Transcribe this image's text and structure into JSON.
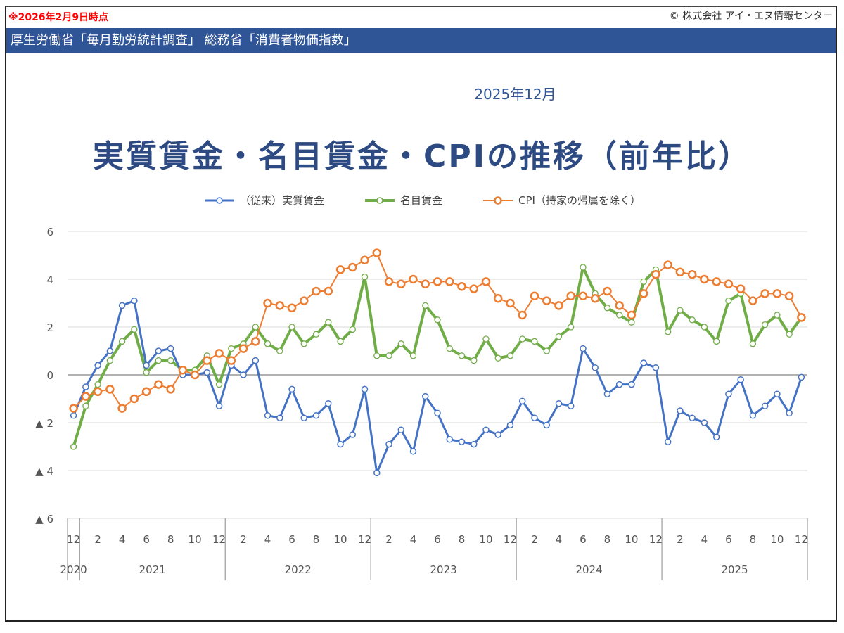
{
  "header": {
    "as_of": "※2026年2月9日時点",
    "copyright": "© 株式会社 アイ・エヌ情報センター",
    "source": "厚生労働省「毎月勤労統計調査」 総務省「消費者物価指数」"
  },
  "chart_data": {
    "type": "line",
    "period": "2025年12月",
    "title": "実質賃金・名目賃金・CPIの推移（前年比）",
    "ylim": [
      -6,
      6
    ],
    "yticks": [
      6,
      4,
      2,
      0,
      -2,
      -4,
      -6
    ],
    "ytick_labels": [
      "6",
      "4",
      "2",
      "0",
      "▲ 2",
      "▲ 4",
      "▲ 6"
    ],
    "grid": true,
    "legend_position": "top",
    "x_start": "2020-12",
    "x_end": "2025-12",
    "x_tick_labels": [
      "12",
      "2",
      "4",
      "6",
      "8",
      "10",
      "12",
      "2",
      "4",
      "6",
      "8",
      "10",
      "12",
      "2",
      "4",
      "6",
      "8",
      "10",
      "12",
      "2",
      "4",
      "6",
      "8",
      "10",
      "12",
      "2",
      "4",
      "6",
      "8",
      "10",
      "12"
    ],
    "year_labels": [
      "2020",
      "2021",
      "2022",
      "2023",
      "2024",
      "2025"
    ],
    "series": [
      {
        "name": "（従来）実質賃金",
        "color": "#4472C4",
        "values": [
          -1.7,
          -0.5,
          0.4,
          1.0,
          2.9,
          3.1,
          0.4,
          1.0,
          1.1,
          0.0,
          0.0,
          0.1,
          -1.3,
          0.4,
          0.0,
          0.6,
          -1.7,
          -1.8,
          -0.6,
          -1.8,
          -1.7,
          -1.2,
          -2.9,
          -2.5,
          -0.6,
          -4.1,
          -2.9,
          -2.3,
          -3.2,
          -0.9,
          -1.6,
          -2.7,
          -2.8,
          -2.9,
          -2.3,
          -2.5,
          -2.1,
          -1.1,
          -1.8,
          -2.1,
          -1.2,
          -1.3,
          1.1,
          0.3,
          -0.8,
          -0.4,
          -0.4,
          0.5,
          0.3,
          -2.8,
          -1.5,
          -1.8,
          -2.0,
          -2.6,
          -0.8,
          -0.2,
          -1.7,
          -1.3,
          -0.8,
          -1.6,
          -0.1
        ]
      },
      {
        "name": "名目賃金",
        "color": "#70AD47",
        "values": [
          -3.0,
          -1.3,
          -0.4,
          0.6,
          1.4,
          1.9,
          0.1,
          0.6,
          0.6,
          0.2,
          0.2,
          0.8,
          -0.4,
          1.1,
          1.3,
          2.0,
          1.3,
          1.0,
          2.0,
          1.3,
          1.7,
          2.2,
          1.4,
          1.9,
          4.1,
          0.8,
          0.8,
          1.3,
          0.8,
          2.9,
          2.3,
          1.1,
          0.8,
          0.6,
          1.5,
          0.7,
          0.8,
          1.5,
          1.4,
          1.0,
          1.6,
          2.0,
          4.5,
          3.4,
          2.8,
          2.5,
          2.2,
          3.9,
          4.4,
          1.8,
          2.7,
          2.3,
          2.0,
          1.4,
          3.1,
          3.4,
          1.3,
          2.1,
          2.5,
          1.7,
          2.4
        ]
      },
      {
        "name": "CPI（持家の帰属を除く）",
        "color": "#ED7D31",
        "values": [
          -1.4,
          -0.9,
          -0.7,
          -0.6,
          -1.4,
          -1.0,
          -0.7,
          -0.4,
          -0.6,
          0.2,
          0.0,
          0.6,
          0.9,
          0.6,
          1.1,
          1.4,
          3.0,
          2.9,
          2.8,
          3.1,
          3.5,
          3.5,
          4.4,
          4.5,
          4.8,
          5.1,
          3.9,
          3.8,
          4.0,
          3.8,
          3.9,
          3.9,
          3.7,
          3.6,
          3.9,
          3.2,
          3.0,
          2.5,
          3.3,
          3.1,
          2.9,
          3.3,
          3.3,
          3.2,
          3.5,
          2.9,
          2.5,
          3.4,
          4.2,
          4.6,
          4.3,
          4.2,
          4.0,
          3.9,
          3.8,
          3.6,
          3.1,
          3.4,
          3.4,
          3.3,
          2.4
        ]
      }
    ]
  }
}
